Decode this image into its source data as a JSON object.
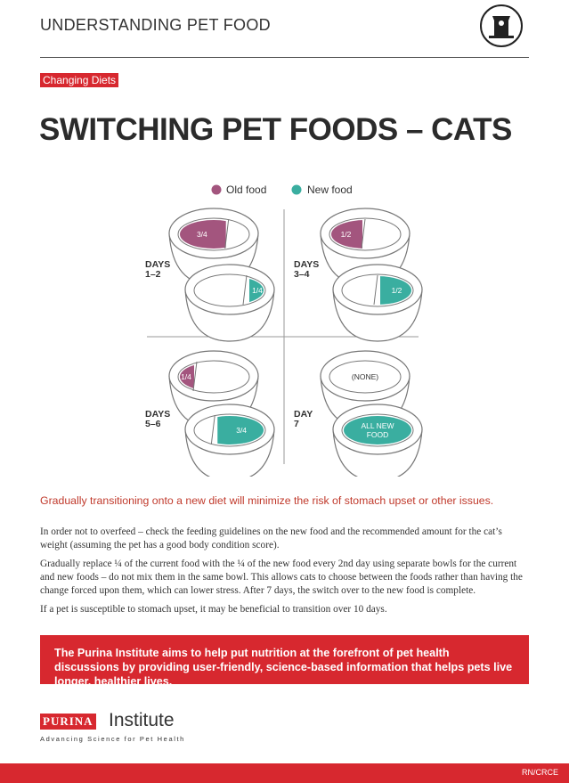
{
  "header": {
    "title": "UNDERSTANDING PET FOOD"
  },
  "tag": "Changing Diets",
  "title": "SWITCHING PET FOODS – CATS",
  "legend": [
    "Old food",
    "New food"
  ],
  "quadrants": [
    {
      "days": [
        "DAYS",
        "1–2"
      ],
      "top_label": [
        "3/4"
      ],
      "bottom_label": [
        "1/4"
      ]
    },
    {
      "days": [
        "DAYS",
        "3–4"
      ],
      "top_label": [
        "1/2"
      ],
      "bottom_label": [
        "1/2"
      ]
    },
    {
      "days": [
        "DAYS",
        "5–6"
      ],
      "top_label": [
        "1/4"
      ],
      "bottom_label": [
        "3/4"
      ]
    },
    {
      "days": [
        "DAY",
        "7"
      ],
      "top_label": [
        "(NONE)"
      ],
      "bottom_label": [
        "ALL NEW",
        "FOOD"
      ]
    }
  ],
  "lead": "Gradually transitioning onto a new diet will minimize the risk of stomach upset or other issues.",
  "paragraphs": [
    "In order not to overfeed – check the feeding guidelines on the new food and the recommended amount for the cat’s weight (assuming the pet has a good body condition score).",
    "Gradually replace ¼ of the current food with the ¼ of the new food every 2nd day using separate bowls for the current and new foods – do not mix them in the same bowl. This allows cats to choose between the foods rather than having the change forced upon them, which can lower stress. After 7 days, the switch over to the new food is complete.",
    "If a pet is susceptible to stomach upset, it may be beneficial to transition over 10 days."
  ],
  "banner": "The Purina Institute aims to help put nutrition at the forefront of pet health discussions by providing user-friendly, science-based information that helps pets live longer, healthier lives.",
  "logo": {
    "brand": "PURINA",
    "name": "Institute",
    "tagline": "Advancing Science for Pet Health"
  },
  "footer": "RN/CRCE"
}
